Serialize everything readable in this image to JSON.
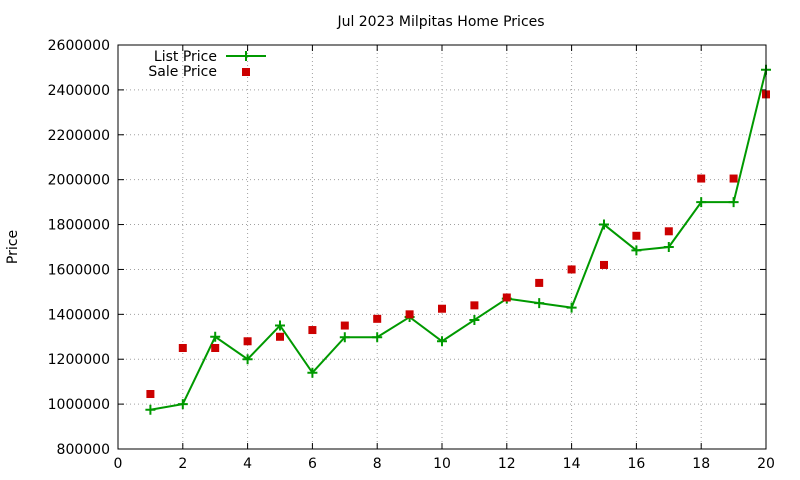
{
  "chart_data": {
    "type": "line",
    "title": "Jul 2023 Milpitas Home Prices",
    "xlabel": "",
    "ylabel": "Price",
    "xlim": [
      0,
      20
    ],
    "ylim": [
      800000,
      2600000
    ],
    "xticks": [
      0,
      2,
      4,
      6,
      8,
      10,
      12,
      14,
      16,
      18,
      20
    ],
    "yticks": [
      800000,
      1000000,
      1200000,
      1400000,
      1600000,
      1800000,
      2000000,
      2200000,
      2400000,
      2600000
    ],
    "grid": true,
    "legend_position": "top-left",
    "x": [
      1,
      2,
      3,
      4,
      5,
      6,
      7,
      8,
      9,
      10,
      11,
      12,
      13,
      14,
      15,
      16,
      17,
      18,
      19,
      20
    ],
    "series": [
      {
        "name": "List Price",
        "style": "line-plus",
        "color": "#009900",
        "values": [
          975000,
          1000000,
          1300000,
          1200000,
          1350000,
          1140000,
          1298000,
          1298000,
          1388000,
          1280000,
          1375000,
          1470000,
          1450000,
          1430000,
          1800000,
          1685000,
          1700000,
          1900000,
          1900000,
          2490000
        ]
      },
      {
        "name": "Sale Price",
        "style": "square",
        "color": "#cc0000",
        "values": [
          1045000,
          1250000,
          1250000,
          1280000,
          1300000,
          1330000,
          1350000,
          1380000,
          1400000,
          1425000,
          1440000,
          1475000,
          1540000,
          1600000,
          1620000,
          1750000,
          1770000,
          2005000,
          2005000,
          2380000
        ]
      }
    ]
  }
}
